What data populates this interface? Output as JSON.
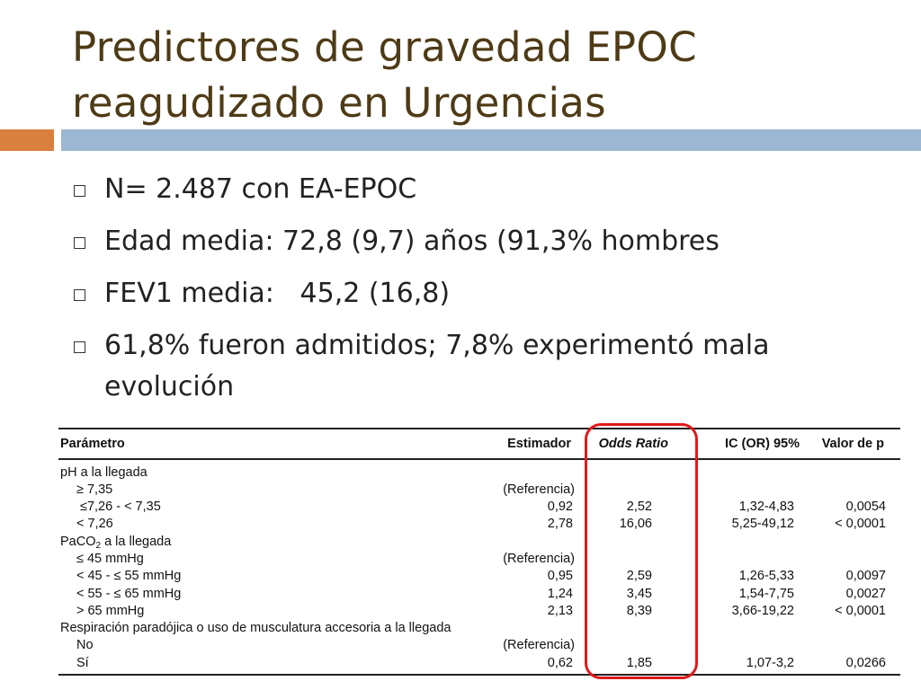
{
  "slide": {
    "title": "Predictores de gravedad EPOC reagudizado en Urgencias",
    "accent_colors": {
      "title": "#4e3b16",
      "bar_orange": "#d9803e",
      "bar_blue": "#9bb7d1",
      "highlight": "#e0191b"
    }
  },
  "bullets": [
    "N= 2.487 con EA-EPOC",
    "Edad media: 72,8 (9,7) años (91,3% hombres",
    "FEV1 media:   45,2 (16,8)",
    "61,8% fueron admitidos; 7,8% experimentó mala evolución"
  ],
  "table": {
    "headers": {
      "param": "Parámetro",
      "est": "Estimador",
      "or": "Odds Ratio",
      "ic": "IC (OR) 95%",
      "p": "Valor de p"
    },
    "rows": [
      {
        "param": "pH a la llegada",
        "est": "",
        "or": "",
        "ic": "",
        "p": ""
      },
      {
        "param": "≥ 7,35",
        "est": "(Referencia)",
        "or": "",
        "ic": "",
        "p": ""
      },
      {
        "param": "≤7,26 - < 7,35",
        "est": "0,92",
        "or": "2,52",
        "ic": "1,32-4,83",
        "p": "0,0054"
      },
      {
        "param": "< 7,26",
        "est": "2,78",
        "or": "16,06",
        "ic": "5,25-49,12",
        "p": "< 0,0001"
      },
      {
        "param": "PaCO",
        "param_sub": "2",
        "param_suffix": " a la llegada",
        "est": "",
        "or": "",
        "ic": "",
        "p": ""
      },
      {
        "param": "≤ 45 mmHg",
        "est": "(Referencia)",
        "or": "",
        "ic": "",
        "p": ""
      },
      {
        "param": "< 45 - ≤ 55 mmHg",
        "est": "0,95",
        "or": "2,59",
        "ic": "1,26-5,33",
        "p": "0,0097"
      },
      {
        "param": "< 55 - ≤ 65 mmHg",
        "est": "1,24",
        "or": "3,45",
        "ic": "1,54-7,75",
        "p": "0,0027"
      },
      {
        "param": "> 65 mmHg",
        "est": "2,13",
        "or": "8,39",
        "ic": "3,66-19,22",
        "p": "< 0,0001"
      },
      {
        "param": "Respiración paradójica o uso de musculatura accesoria a la llegada",
        "est": "",
        "or": "",
        "ic": "",
        "p": ""
      },
      {
        "param": "No",
        "est": "(Referencia)",
        "or": "",
        "ic": "",
        "p": ""
      },
      {
        "param": "Sí",
        "est": "0,62",
        "or": "1,85",
        "ic": "1,07-3,2",
        "p": "0,0266"
      }
    ]
  }
}
